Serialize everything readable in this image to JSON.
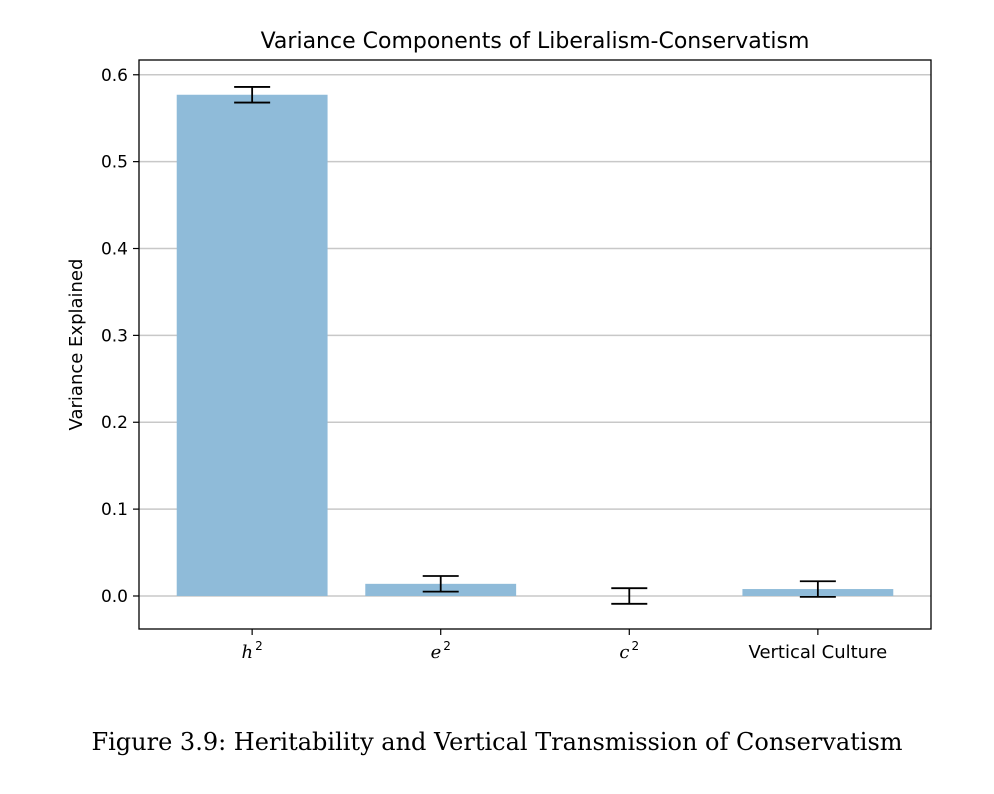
{
  "chart_data": {
    "type": "bar",
    "title": "Variance Components of Liberalism-Conservatism",
    "xlabel": "",
    "ylabel": "Variance Explained",
    "categories": [
      {
        "base": "h",
        "sup": "2",
        "italic": true
      },
      {
        "base": "e",
        "sup": "2",
        "italic": true
      },
      {
        "base": "c",
        "sup": "2",
        "italic": true
      },
      {
        "base": "Vertical Culture",
        "sup": "",
        "italic": false
      }
    ],
    "values": [
      0.577,
      0.014,
      0.0,
      0.008
    ],
    "error": [
      0.009,
      0.009,
      0.009,
      0.009
    ],
    "ylim": [
      -0.038,
      0.617
    ],
    "yticks": [
      "0.0",
      "0.1",
      "0.2",
      "0.3",
      "0.4",
      "0.5",
      "0.6"
    ],
    "ytick_values": [
      0.0,
      0.1,
      0.2,
      0.3,
      0.4,
      0.5,
      0.6
    ],
    "grid": "horizontal",
    "bar_color": "#8fbbd9",
    "grid_color": "#c8c8c8",
    "errorbar_color": "#000000"
  },
  "caption": "Figure 3.9: Heritability and Vertical Transmission of Conservatism"
}
